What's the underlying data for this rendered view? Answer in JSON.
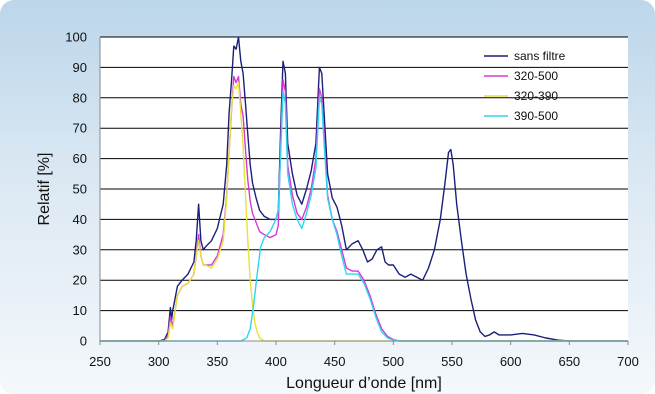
{
  "chart_data": {
    "type": "line",
    "title": "",
    "xlabel": "Longueur d’onde [nm]",
    "ylabel": "Relatif [%]",
    "xlim": [
      250,
      700
    ],
    "ylim": [
      0,
      100
    ],
    "x_ticks": [
      "250",
      "300",
      "350",
      "400",
      "450",
      "500",
      "550",
      "600",
      "650",
      "700"
    ],
    "y_ticks": [
      "0",
      "10",
      "20",
      "30",
      "40",
      "50",
      "60",
      "70",
      "80",
      "90",
      "100"
    ],
    "grid": "horizontal",
    "legend_position": "top-right",
    "series": [
      {
        "name": "sans filtre",
        "color": "#1b1f7a",
        "points": [
          [
            250,
            0
          ],
          [
            300,
            0
          ],
          [
            305,
            0.5
          ],
          [
            308,
            3
          ],
          [
            310,
            11
          ],
          [
            311,
            7
          ],
          [
            312,
            10
          ],
          [
            314,
            14
          ],
          [
            316,
            18
          ],
          [
            320,
            20
          ],
          [
            325,
            22
          ],
          [
            330,
            26
          ],
          [
            332,
            33
          ],
          [
            334,
            45
          ],
          [
            336,
            33
          ],
          [
            338,
            30
          ],
          [
            340,
            31
          ],
          [
            345,
            33
          ],
          [
            350,
            37
          ],
          [
            355,
            45
          ],
          [
            358,
            58
          ],
          [
            360,
            75
          ],
          [
            362,
            85
          ],
          [
            364,
            97
          ],
          [
            366,
            96
          ],
          [
            368,
            100
          ],
          [
            370,
            92
          ],
          [
            372,
            88
          ],
          [
            374,
            78
          ],
          [
            376,
            68
          ],
          [
            378,
            58
          ],
          [
            380,
            52
          ],
          [
            383,
            47
          ],
          [
            386,
            43
          ],
          [
            390,
            41
          ],
          [
            395,
            40
          ],
          [
            400,
            40
          ],
          [
            402,
            43
          ],
          [
            404,
            70
          ],
          [
            406,
            92
          ],
          [
            408,
            88
          ],
          [
            410,
            65
          ],
          [
            414,
            55
          ],
          [
            418,
            48
          ],
          [
            422,
            45
          ],
          [
            426,
            50
          ],
          [
            430,
            56
          ],
          [
            434,
            65
          ],
          [
            437,
            90
          ],
          [
            439,
            88
          ],
          [
            441,
            75
          ],
          [
            444,
            55
          ],
          [
            448,
            47
          ],
          [
            452,
            44
          ],
          [
            456,
            38
          ],
          [
            460,
            30
          ],
          [
            465,
            32
          ],
          [
            470,
            33
          ],
          [
            474,
            30
          ],
          [
            478,
            26
          ],
          [
            482,
            27
          ],
          [
            486,
            30
          ],
          [
            490,
            31
          ],
          [
            493,
            26
          ],
          [
            496,
            25
          ],
          [
            500,
            25
          ],
          [
            505,
            22
          ],
          [
            510,
            21
          ],
          [
            515,
            22
          ],
          [
            520,
            21
          ],
          [
            525,
            20
          ],
          [
            530,
            24
          ],
          [
            535,
            30
          ],
          [
            540,
            40
          ],
          [
            544,
            52
          ],
          [
            547,
            62
          ],
          [
            549,
            63
          ],
          [
            551,
            58
          ],
          [
            554,
            45
          ],
          [
            558,
            33
          ],
          [
            562,
            22
          ],
          [
            566,
            14
          ],
          [
            570,
            7
          ],
          [
            574,
            3
          ],
          [
            578,
            1.5
          ],
          [
            582,
            2
          ],
          [
            586,
            3
          ],
          [
            590,
            2
          ],
          [
            600,
            2
          ],
          [
            610,
            2.5
          ],
          [
            620,
            2
          ],
          [
            630,
            1
          ],
          [
            640,
            0.3
          ],
          [
            650,
            0
          ],
          [
            700,
            0
          ]
        ]
      },
      {
        "name": "320-500",
        "color": "#d43ad8",
        "points": [
          [
            250,
            0
          ],
          [
            305,
            0
          ],
          [
            308,
            2
          ],
          [
            310,
            8
          ],
          [
            312,
            5
          ],
          [
            314,
            10
          ],
          [
            316,
            15
          ],
          [
            320,
            18
          ],
          [
            325,
            19
          ],
          [
            330,
            22
          ],
          [
            332,
            28
          ],
          [
            334,
            35
          ],
          [
            336,
            28
          ],
          [
            338,
            25
          ],
          [
            340,
            25
          ],
          [
            345,
            25
          ],
          [
            350,
            28
          ],
          [
            355,
            35
          ],
          [
            358,
            48
          ],
          [
            360,
            62
          ],
          [
            362,
            75
          ],
          [
            364,
            87
          ],
          [
            366,
            85
          ],
          [
            368,
            87
          ],
          [
            370,
            78
          ],
          [
            372,
            74
          ],
          [
            374,
            63
          ],
          [
            376,
            53
          ],
          [
            378,
            46
          ],
          [
            380,
            42
          ],
          [
            383,
            39
          ],
          [
            386,
            36
          ],
          [
            390,
            35
          ],
          [
            395,
            34
          ],
          [
            400,
            35
          ],
          [
            402,
            38
          ],
          [
            404,
            65
          ],
          [
            406,
            86
          ],
          [
            408,
            82
          ],
          [
            410,
            58
          ],
          [
            414,
            48
          ],
          [
            418,
            42
          ],
          [
            422,
            40
          ],
          [
            426,
            44
          ],
          [
            430,
            50
          ],
          [
            434,
            60
          ],
          [
            437,
            83
          ],
          [
            439,
            80
          ],
          [
            441,
            68
          ],
          [
            444,
            48
          ],
          [
            448,
            40
          ],
          [
            452,
            36
          ],
          [
            456,
            30
          ],
          [
            460,
            24
          ],
          [
            465,
            23
          ],
          [
            470,
            23
          ],
          [
            475,
            20
          ],
          [
            480,
            15
          ],
          [
            485,
            9
          ],
          [
            490,
            4
          ],
          [
            495,
            1.5
          ],
          [
            500,
            0.5
          ],
          [
            505,
            0
          ],
          [
            700,
            0
          ]
        ]
      },
      {
        "name": "320-390",
        "color": "#e7e13a",
        "points": [
          [
            250,
            0
          ],
          [
            305,
            0
          ],
          [
            308,
            1
          ],
          [
            310,
            6
          ],
          [
            312,
            4
          ],
          [
            314,
            10
          ],
          [
            316,
            15
          ],
          [
            320,
            18
          ],
          [
            325,
            19
          ],
          [
            330,
            22
          ],
          [
            332,
            28
          ],
          [
            334,
            33
          ],
          [
            336,
            28
          ],
          [
            338,
            25
          ],
          [
            340,
            25
          ],
          [
            345,
            24
          ],
          [
            350,
            27
          ],
          [
            355,
            33
          ],
          [
            358,
            47
          ],
          [
            360,
            62
          ],
          [
            362,
            76
          ],
          [
            364,
            84
          ],
          [
            366,
            83
          ],
          [
            368,
            85
          ],
          [
            370,
            75
          ],
          [
            372,
            64
          ],
          [
            374,
            48
          ],
          [
            376,
            33
          ],
          [
            378,
            20
          ],
          [
            380,
            12
          ],
          [
            382,
            6
          ],
          [
            384,
            3
          ],
          [
            386,
            1
          ],
          [
            390,
            0
          ],
          [
            700,
            0
          ]
        ]
      },
      {
        "name": "390-500",
        "color": "#2fd5f0",
        "points": [
          [
            250,
            0
          ],
          [
            370,
            0
          ],
          [
            375,
            1
          ],
          [
            378,
            4
          ],
          [
            381,
            12
          ],
          [
            384,
            22
          ],
          [
            387,
            31
          ],
          [
            390,
            34
          ],
          [
            395,
            36
          ],
          [
            400,
            40
          ],
          [
            402,
            43
          ],
          [
            404,
            62
          ],
          [
            406,
            82
          ],
          [
            408,
            78
          ],
          [
            410,
            55
          ],
          [
            414,
            45
          ],
          [
            418,
            40
          ],
          [
            422,
            37
          ],
          [
            426,
            42
          ],
          [
            430,
            48
          ],
          [
            434,
            57
          ],
          [
            437,
            80
          ],
          [
            439,
            78
          ],
          [
            441,
            65
          ],
          [
            444,
            47
          ],
          [
            448,
            40
          ],
          [
            452,
            35
          ],
          [
            456,
            28
          ],
          [
            460,
            22
          ],
          [
            465,
            22
          ],
          [
            470,
            22
          ],
          [
            475,
            19
          ],
          [
            480,
            14
          ],
          [
            485,
            8
          ],
          [
            490,
            3
          ],
          [
            495,
            1
          ],
          [
            500,
            0.3
          ],
          [
            505,
            0
          ],
          [
            700,
            0
          ]
        ]
      }
    ]
  }
}
